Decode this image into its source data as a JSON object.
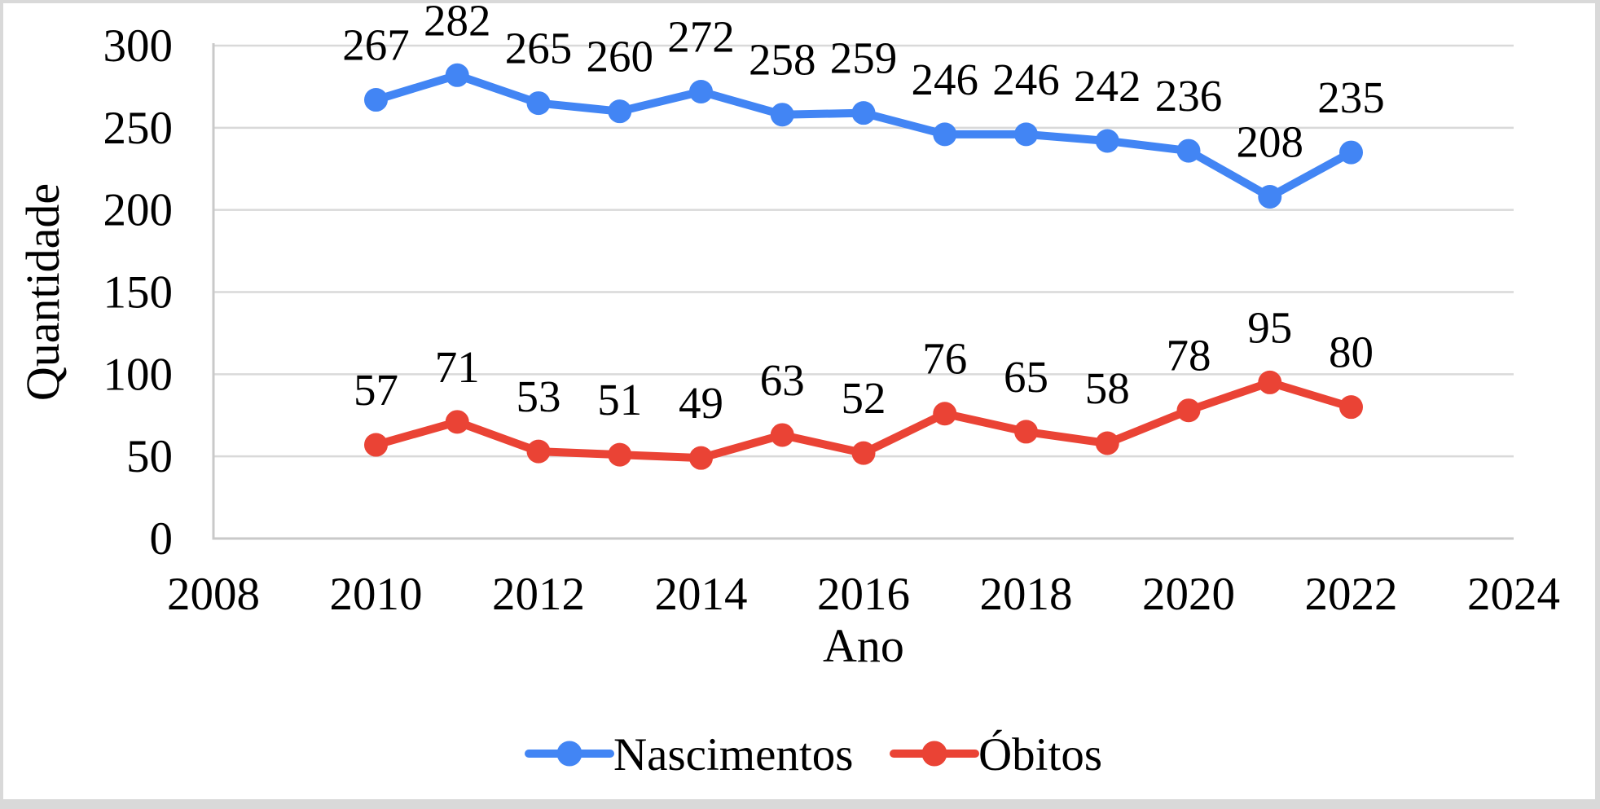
{
  "page": {
    "background": "#ffffff",
    "frame_border_color": "#d9d9d9",
    "plot_text_color": "#000000"
  },
  "chart_data": {
    "type": "line",
    "x": [
      2010,
      2011,
      2012,
      2013,
      2014,
      2015,
      2016,
      2017,
      2018,
      2019,
      2020,
      2021,
      2022
    ],
    "series": [
      {
        "name": "Nascimentos",
        "color": "#4285F4",
        "values": [
          267,
          282,
          265,
          260,
          272,
          258,
          259,
          246,
          246,
          242,
          236,
          208,
          235
        ]
      },
      {
        "name": "Óbitos",
        "color": "#EA4335",
        "values": [
          57,
          71,
          53,
          51,
          49,
          63,
          52,
          76,
          65,
          58,
          78,
          95,
          80
        ]
      }
    ],
    "title": "",
    "xlabel": "Ano",
    "ylabel": "Quantidade",
    "xlim": [
      2008,
      2024
    ],
    "ylim": [
      0,
      300
    ],
    "x_ticks": [
      2008,
      2010,
      2012,
      2014,
      2016,
      2018,
      2020,
      2022,
      2024
    ],
    "y_ticks": [
      0,
      50,
      100,
      150,
      200,
      250,
      300
    ],
    "grid": "horizontal",
    "gridline_color": "#d9d9d9",
    "axis_line_color": "#c9c9c9",
    "data_labels": true,
    "legend_position": "bottom",
    "legend": [
      "Nascimentos",
      "Óbitos"
    ]
  }
}
